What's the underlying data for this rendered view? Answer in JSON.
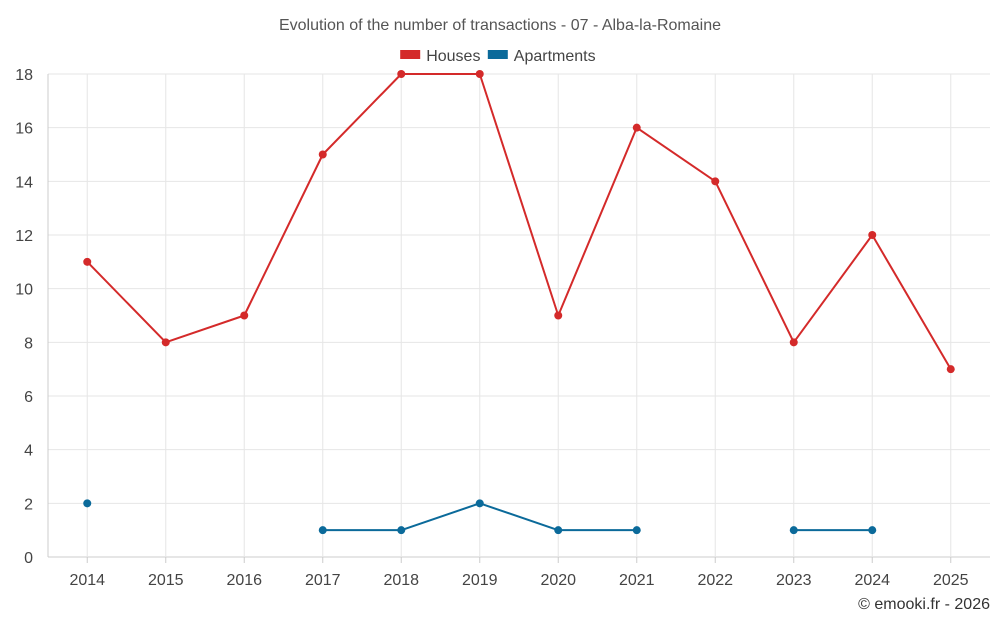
{
  "chart_data": {
    "type": "line",
    "title": "Evolution of the number of transactions - 07 - Alba-la-Romaine",
    "x": [
      "2014",
      "2015",
      "2016",
      "2017",
      "2018",
      "2019",
      "2020",
      "2021",
      "2022",
      "2023",
      "2024",
      "2025"
    ],
    "ylim": [
      0,
      18
    ],
    "yticks": [
      0,
      2,
      4,
      6,
      8,
      10,
      12,
      14,
      16,
      18
    ],
    "grid": true,
    "legend_position": "top-center",
    "series": [
      {
        "name": "Houses",
        "color": "#d42a2a",
        "values": [
          11,
          8,
          9,
          15,
          18,
          18,
          9,
          16,
          14,
          8,
          12,
          7
        ]
      },
      {
        "name": "Apartments",
        "color": "#0b6a9a",
        "values": [
          2,
          null,
          null,
          1,
          1,
          2,
          1,
          1,
          null,
          1,
          1,
          null
        ]
      }
    ]
  },
  "credit": "© emooki.fr - 2026"
}
